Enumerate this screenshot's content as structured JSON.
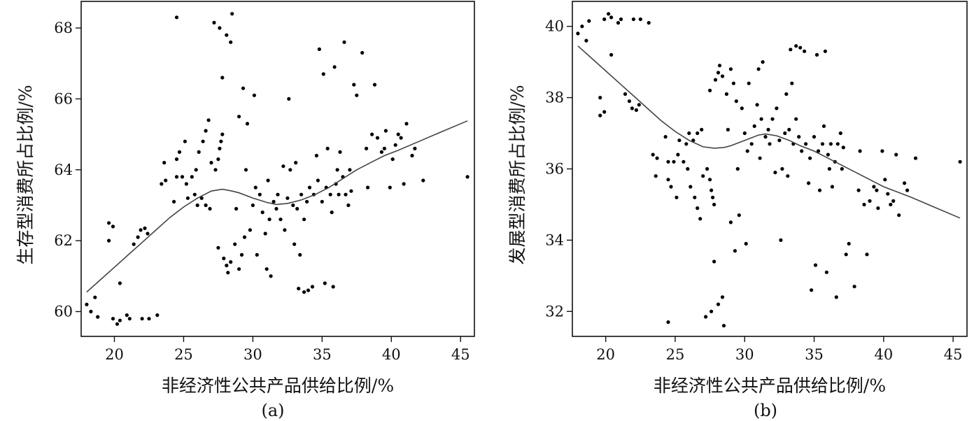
{
  "chart_data": [
    {
      "type": "scatter",
      "panel_label": "(a)",
      "xlabel": "非经济性公共产品供给比例/%",
      "ylabel": "生存型消费所占比例/%",
      "xlim": [
        17.6,
        46.0
      ],
      "ylim": [
        59.3,
        68.75
      ],
      "xticks": [
        20,
        25,
        30,
        35,
        40,
        45
      ],
      "yticks": [
        60,
        62,
        64,
        66,
        68
      ],
      "grid": false,
      "legend": "none",
      "fit_curve": [
        [
          18.0,
          60.55
        ],
        [
          19.0,
          60.9
        ],
        [
          20.0,
          61.25
        ],
        [
          21.0,
          61.6
        ],
        [
          22.0,
          61.95
        ],
        [
          23.0,
          62.3
        ],
        [
          24.0,
          62.65
        ],
        [
          25.0,
          62.95
        ],
        [
          26.0,
          63.2
        ],
        [
          27.0,
          63.4
        ],
        [
          27.8,
          63.45
        ],
        [
          28.5,
          63.4
        ],
        [
          29.0,
          63.35
        ],
        [
          30.0,
          63.2
        ],
        [
          31.0,
          63.08
        ],
        [
          31.7,
          63.02
        ],
        [
          32.5,
          63.05
        ],
        [
          33.5,
          63.15
        ],
        [
          34.5,
          63.3
        ],
        [
          35.5,
          63.5
        ],
        [
          36.5,
          63.75
        ],
        [
          37.5,
          64.0
        ],
        [
          38.5,
          64.2
        ],
        [
          39.5,
          64.4
        ],
        [
          40.5,
          64.55
        ],
        [
          42.0,
          64.8
        ],
        [
          43.5,
          65.05
        ],
        [
          45.5,
          65.38
        ]
      ],
      "points": [
        [
          18.0,
          60.2
        ],
        [
          18.3,
          60.0
        ],
        [
          18.6,
          60.4
        ],
        [
          18.8,
          59.85
        ],
        [
          19.6,
          62.0
        ],
        [
          19.6,
          62.5
        ],
        [
          19.9,
          62.4
        ],
        [
          19.9,
          59.8
        ],
        [
          20.2,
          59.65
        ],
        [
          20.4,
          59.75
        ],
        [
          20.4,
          60.8
        ],
        [
          20.9,
          59.9
        ],
        [
          21.1,
          59.8
        ],
        [
          21.4,
          61.9
        ],
        [
          21.7,
          62.1
        ],
        [
          21.9,
          62.3
        ],
        [
          22.2,
          62.35
        ],
        [
          22.4,
          62.2
        ],
        [
          22.0,
          59.8
        ],
        [
          22.5,
          59.8
        ],
        [
          23.1,
          59.9
        ],
        [
          23.4,
          63.6
        ],
        [
          23.6,
          64.2
        ],
        [
          23.7,
          63.7
        ],
        [
          24.3,
          63.1
        ],
        [
          24.5,
          63.8
        ],
        [
          24.5,
          64.3
        ],
        [
          24.5,
          68.3
        ],
        [
          24.7,
          64.5
        ],
        [
          24.9,
          63.8
        ],
        [
          25.1,
          64.8
        ],
        [
          25.2,
          63.6
        ],
        [
          25.3,
          63.2
        ],
        [
          25.6,
          63.8
        ],
        [
          25.8,
          63.3
        ],
        [
          25.9,
          64.0
        ],
        [
          26.0,
          63.0
        ],
        [
          26.1,
          64.5
        ],
        [
          26.3,
          63.2
        ],
        [
          26.4,
          64.8
        ],
        [
          26.6,
          65.1
        ],
        [
          26.8,
          65.4
        ],
        [
          26.6,
          63.0
        ],
        [
          26.9,
          62.9
        ],
        [
          27.0,
          64.2
        ],
        [
          27.2,
          68.15
        ],
        [
          27.3,
          64.0
        ],
        [
          27.5,
          64.3
        ],
        [
          27.6,
          64.6
        ],
        [
          27.7,
          64.8
        ],
        [
          27.8,
          65.0
        ],
        [
          27.8,
          66.6
        ],
        [
          27.5,
          61.8
        ],
        [
          27.6,
          68.0
        ],
        [
          27.9,
          61.5
        ],
        [
          28.1,
          61.3
        ],
        [
          28.1,
          67.8
        ],
        [
          28.2,
          61.1
        ],
        [
          28.4,
          61.4
        ],
        [
          28.4,
          67.6
        ],
        [
          28.5,
          68.4
        ],
        [
          28.7,
          61.9
        ],
        [
          28.8,
          62.9
        ],
        [
          29.0,
          65.5
        ],
        [
          29.0,
          61.2
        ],
        [
          29.2,
          61.6
        ],
        [
          29.3,
          66.3
        ],
        [
          29.4,
          62.1
        ],
        [
          29.5,
          64.0
        ],
        [
          29.6,
          65.3
        ],
        [
          29.8,
          62.3
        ],
        [
          30.0,
          63.0
        ],
        [
          30.1,
          66.1
        ],
        [
          30.2,
          63.5
        ],
        [
          30.3,
          61.6
        ],
        [
          30.5,
          63.3
        ],
        [
          30.7,
          62.8
        ],
        [
          30.9,
          62.2
        ],
        [
          31.0,
          61.2
        ],
        [
          31.1,
          63.7
        ],
        [
          31.2,
          62.6
        ],
        [
          31.3,
          61.0
        ],
        [
          31.5,
          63.1
        ],
        [
          31.7,
          62.9
        ],
        [
          31.8,
          63.3
        ],
        [
          32.0,
          62.6
        ],
        [
          32.2,
          64.1
        ],
        [
          32.3,
          62.3
        ],
        [
          32.5,
          63.2
        ],
        [
          32.6,
          66.0
        ],
        [
          32.7,
          64.0
        ],
        [
          32.9,
          63.0
        ],
        [
          33.0,
          61.9
        ],
        [
          33.1,
          64.2
        ],
        [
          33.2,
          62.9
        ],
        [
          33.3,
          60.65
        ],
        [
          33.4,
          61.6
        ],
        [
          33.5,
          63.3
        ],
        [
          33.7,
          62.6
        ],
        [
          33.7,
          60.55
        ],
        [
          33.9,
          63.1
        ],
        [
          34.0,
          60.6
        ],
        [
          34.1,
          63.5
        ],
        [
          34.3,
          60.7
        ],
        [
          34.4,
          63.3
        ],
        [
          34.6,
          64.4
        ],
        [
          34.7,
          63.7
        ],
        [
          34.8,
          67.4
        ],
        [
          35.0,
          63.1
        ],
        [
          35.2,
          60.8
        ],
        [
          35.1,
          66.7
        ],
        [
          35.3,
          63.5
        ],
        [
          35.4,
          64.6
        ],
        [
          35.6,
          63.3
        ],
        [
          35.7,
          62.8
        ],
        [
          35.8,
          60.7
        ],
        [
          35.9,
          66.9
        ],
        [
          36.0,
          63.6
        ],
        [
          36.1,
          64.0
        ],
        [
          36.2,
          63.3
        ],
        [
          36.3,
          64.5
        ],
        [
          36.5,
          63.8
        ],
        [
          36.6,
          67.6
        ],
        [
          36.7,
          63.3
        ],
        [
          36.9,
          63.0
        ],
        [
          37.0,
          64.0
        ],
        [
          37.1,
          63.4
        ],
        [
          37.3,
          66.4
        ],
        [
          37.5,
          66.1
        ],
        [
          37.9,
          67.3
        ],
        [
          38.2,
          64.6
        ],
        [
          38.3,
          63.5
        ],
        [
          38.6,
          65.0
        ],
        [
          38.8,
          66.4
        ],
        [
          39.0,
          64.9
        ],
        [
          39.3,
          64.5
        ],
        [
          39.5,
          64.6
        ],
        [
          39.6,
          65.1
        ],
        [
          39.9,
          63.5
        ],
        [
          40.1,
          64.3
        ],
        [
          40.3,
          64.7
        ],
        [
          40.5,
          65.0
        ],
        [
          40.7,
          64.9
        ],
        [
          40.9,
          63.6
        ],
        [
          41.1,
          65.3
        ],
        [
          41.5,
          64.4
        ],
        [
          41.7,
          64.6
        ],
        [
          42.3,
          63.7
        ],
        [
          45.5,
          63.8
        ]
      ]
    },
    {
      "type": "scatter",
      "panel_label": "(b)",
      "xlabel": "非经济性公共产品供给比例/%",
      "ylabel": "发展型消费所占比例/%",
      "xlim": [
        17.6,
        46.0
      ],
      "ylim": [
        31.3,
        40.7
      ],
      "xticks": [
        20,
        25,
        30,
        35,
        40,
        45
      ],
      "yticks": [
        32,
        34,
        36,
        38,
        40
      ],
      "grid": false,
      "legend": "none",
      "fit_curve": [
        [
          18.0,
          39.45
        ],
        [
          19.0,
          39.1
        ],
        [
          20.0,
          38.75
        ],
        [
          21.0,
          38.4
        ],
        [
          22.0,
          38.05
        ],
        [
          23.0,
          37.7
        ],
        [
          24.0,
          37.35
        ],
        [
          25.0,
          37.05
        ],
        [
          26.0,
          36.8
        ],
        [
          27.0,
          36.62
        ],
        [
          27.8,
          36.58
        ],
        [
          28.5,
          36.6
        ],
        [
          29.0,
          36.65
        ],
        [
          30.0,
          36.8
        ],
        [
          31.0,
          36.95
        ],
        [
          31.5,
          36.98
        ],
        [
          32.3,
          36.93
        ],
        [
          33.2,
          36.8
        ],
        [
          34.0,
          36.65
        ],
        [
          35.0,
          36.5
        ],
        [
          36.0,
          36.3
        ],
        [
          37.0,
          36.1
        ],
        [
          38.0,
          35.9
        ],
        [
          39.0,
          35.7
        ],
        [
          40.0,
          35.5
        ],
        [
          41.0,
          35.35
        ],
        [
          42.0,
          35.2
        ],
        [
          43.5,
          34.95
        ],
        [
          45.5,
          34.62
        ]
      ]
    }
  ]
}
